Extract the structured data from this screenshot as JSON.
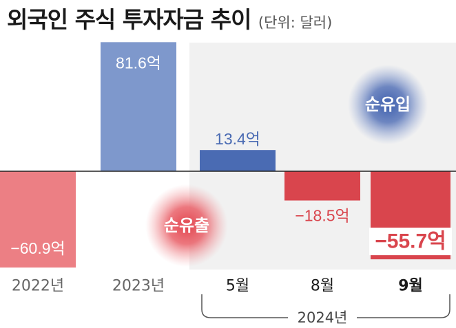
{
  "chart_data": {
    "type": "bar",
    "title": "외국인 주식 투자자금 추이",
    "unit_label": "(단위: 달러)",
    "categories": [
      "2022년",
      "2023년",
      "5월",
      "8월",
      "9월"
    ],
    "values": [
      -60.9,
      81.6,
      13.4,
      -18.5,
      -55.7
    ],
    "value_labels": [
      "−60.9억",
      "81.6억",
      "13.4억",
      "−18.5억",
      "−55.7억"
    ],
    "group_label": "2024년",
    "annotations": [
      "순유입",
      "순유출"
    ],
    "ylim": [
      -66,
      90
    ],
    "grid": false,
    "colors": {
      "positive_light": "#7e98cc",
      "positive_dark": "#4a6bb3",
      "negative_light": "#ec7f84",
      "negative_dark": "#d9454d",
      "highlight_bg": "#f1f1f1",
      "text_dark": "#1a1a1a",
      "text_gray": "#666666"
    }
  }
}
